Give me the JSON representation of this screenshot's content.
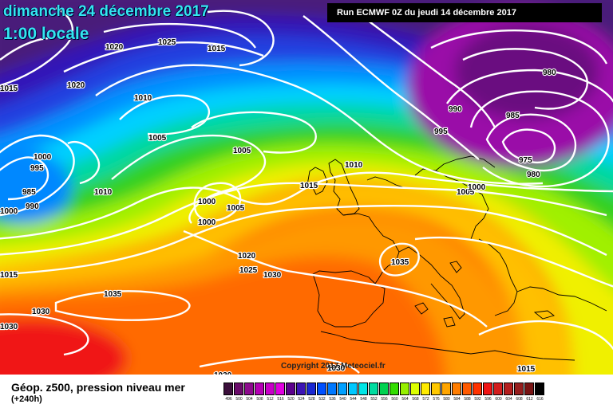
{
  "header": {
    "date": "dimanche 24 décembre 2017",
    "time": "1:00 locale",
    "run": "Run ECMWF 0Z du jeudi 14 décembre 2017"
  },
  "copyright": "Copyright 2017 Meteociel.fr",
  "legend": {
    "title": "Géop. z500, pression niveau mer",
    "subtitle": "(+240h)",
    "levels": [
      {
        "value": "496",
        "color": "#3b0f3b"
      },
      {
        "value": "500",
        "color": "#6a0a6a"
      },
      {
        "value": "504",
        "color": "#8d0a8d"
      },
      {
        "value": "508",
        "color": "#b400b4"
      },
      {
        "value": "512",
        "color": "#c800c8"
      },
      {
        "value": "516",
        "color": "#e000e0"
      },
      {
        "value": "520",
        "color": "#5b008c"
      },
      {
        "value": "524",
        "color": "#3c14b4"
      },
      {
        "value": "528",
        "color": "#1a28d2"
      },
      {
        "value": "532",
        "color": "#0050ff"
      },
      {
        "value": "536",
        "color": "#0078ff"
      },
      {
        "value": "540",
        "color": "#00a0ff"
      },
      {
        "value": "544",
        "color": "#00c8ff"
      },
      {
        "value": "548",
        "color": "#00e6e6"
      },
      {
        "value": "552",
        "color": "#00dca0"
      },
      {
        "value": "556",
        "color": "#00d250"
      },
      {
        "value": "560",
        "color": "#32dc00"
      },
      {
        "value": "564",
        "color": "#96f000"
      },
      {
        "value": "568",
        "color": "#dcff00"
      },
      {
        "value": "572",
        "color": "#ffeb00"
      },
      {
        "value": "576",
        "color": "#ffc800"
      },
      {
        "value": "580",
        "color": "#ffa500"
      },
      {
        "value": "584",
        "color": "#ff7d00"
      },
      {
        "value": "588",
        "color": "#ff5a00"
      },
      {
        "value": "592",
        "color": "#ff3200"
      },
      {
        "value": "596",
        "color": "#f01414"
      },
      {
        "value": "600",
        "color": "#d21e1e"
      },
      {
        "value": "604",
        "color": "#b41e1e"
      },
      {
        "value": "608",
        "color": "#961e1e"
      },
      {
        "value": "612",
        "color": "#781414"
      },
      {
        "value": "616",
        "color": "#000000"
      }
    ]
  },
  "pressure_labels": [
    {
      "text": "1020"
    },
    {
      "text": "1025"
    },
    {
      "text": "1015"
    },
    {
      "text": "1015"
    },
    {
      "text": "1020"
    },
    {
      "text": "1010"
    },
    {
      "text": "1005"
    },
    {
      "text": "1005"
    },
    {
      "text": "1000"
    },
    {
      "text": "995"
    },
    {
      "text": "985"
    },
    {
      "text": "990"
    },
    {
      "text": "1000"
    },
    {
      "text": "1010"
    },
    {
      "text": "1000"
    },
    {
      "text": "1000"
    },
    {
      "text": "1005"
    },
    {
      "text": "1010"
    },
    {
      "text": "1015"
    },
    {
      "text": "1020"
    },
    {
      "text": "1025"
    },
    {
      "text": "1030"
    },
    {
      "text": "1035"
    },
    {
      "text": "1035"
    },
    {
      "text": "1030"
    },
    {
      "text": "1030"
    },
    {
      "text": "1030"
    },
    {
      "text": "1030"
    },
    {
      "text": "1015"
    },
    {
      "text": "1005"
    },
    {
      "text": "1000"
    },
    {
      "text": "995"
    },
    {
      "text": "990"
    },
    {
      "text": "985"
    },
    {
      "text": "980"
    },
    {
      "text": "975"
    },
    {
      "text": "980"
    },
    {
      "text": "1015"
    },
    {
      "text": "1015"
    }
  ]
}
